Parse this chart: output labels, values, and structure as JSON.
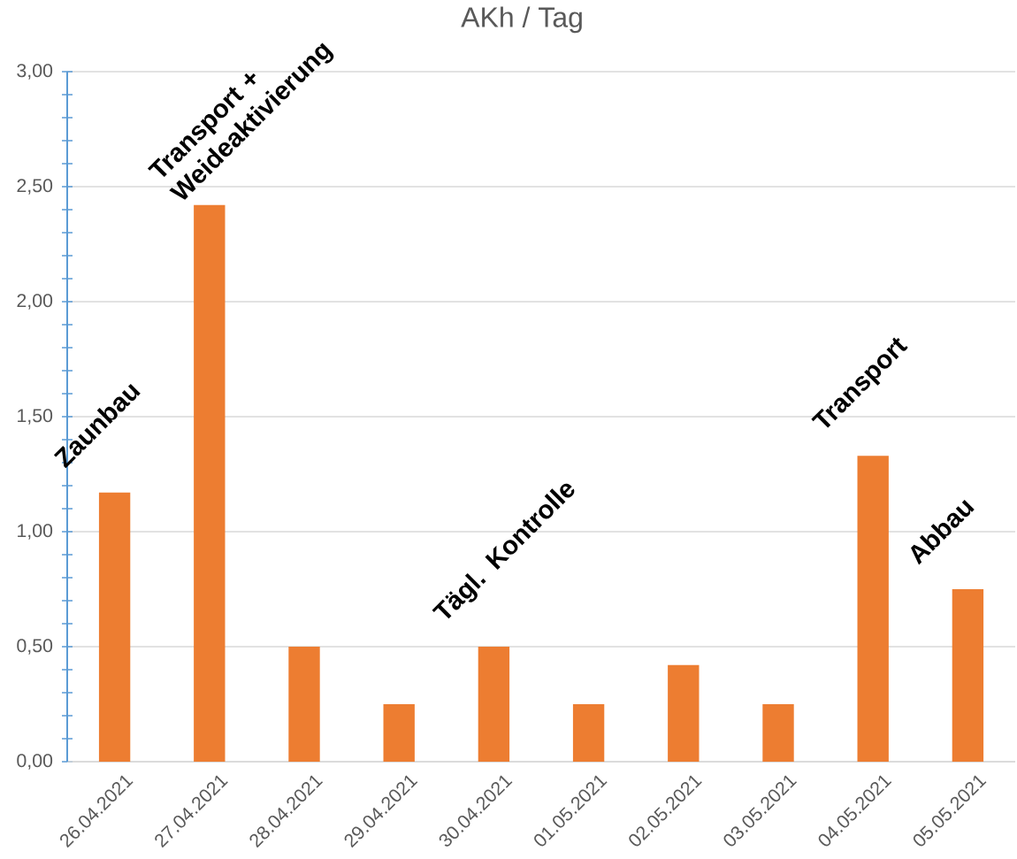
{
  "chart_data": {
    "type": "bar",
    "title": "AKh / Tag",
    "categories": [
      "26.04.2021",
      "27.04.2021",
      "28.04.2021",
      "29.04.2021",
      "30.04.2021",
      "01.05.2021",
      "02.05.2021",
      "03.05.2021",
      "04.05.2021",
      "05.05.2021"
    ],
    "values": [
      1.17,
      2.42,
      0.5,
      0.25,
      0.5,
      0.25,
      0.42,
      0.25,
      1.33,
      0.75
    ],
    "color": "#ed7d31",
    "ylim": [
      0,
      3
    ],
    "yticks": [
      {
        "value": 0,
        "label": "0,00"
      },
      {
        "value": 0.1,
        "label": null
      },
      {
        "value": 0.2,
        "label": null
      },
      {
        "value": 0.3,
        "label": null
      },
      {
        "value": 0.4,
        "label": null
      },
      {
        "value": 0.5,
        "label": "0,50"
      },
      {
        "value": 0.6,
        "label": null
      },
      {
        "value": 0.7,
        "label": null
      },
      {
        "value": 0.8,
        "label": null
      },
      {
        "value": 0.9,
        "label": null
      },
      {
        "value": 1,
        "label": "1,00"
      },
      {
        "value": 1.1,
        "label": null
      },
      {
        "value": 1.2,
        "label": null
      },
      {
        "value": 1.3,
        "label": null
      },
      {
        "value": 1.4,
        "label": null
      },
      {
        "value": 1.5,
        "label": "1,50"
      },
      {
        "value": 1.6,
        "label": null
      },
      {
        "value": 1.7,
        "label": null
      },
      {
        "value": 1.8,
        "label": null
      },
      {
        "value": 1.9,
        "label": null
      },
      {
        "value": 2,
        "label": "2,00"
      },
      {
        "value": 2.1,
        "label": null
      },
      {
        "value": 2.2,
        "label": null
      },
      {
        "value": 2.3,
        "label": null
      },
      {
        "value": 2.4,
        "label": null
      },
      {
        "value": 2.5,
        "label": "2,50"
      },
      {
        "value": 2.6,
        "label": null
      },
      {
        "value": 2.7,
        "label": null
      },
      {
        "value": 2.8,
        "label": null
      },
      {
        "value": 2.9,
        "label": null
      },
      {
        "value": 3,
        "label": "3,00"
      }
    ],
    "grid": "y",
    "annotations": [
      {
        "text": "Zaunbau",
        "x": "26.04.2021",
        "y": 1.17
      },
      {
        "text": "Transport + Weideaktivierung",
        "x": "27.04.2021",
        "y": 2.42
      },
      {
        "text": "Tägl. Kontrolle",
        "x": "30.04.2021",
        "y": 0.5
      },
      {
        "text": "Transport",
        "x": "04.05.2021",
        "y": 1.33
      },
      {
        "text": "Abbau",
        "x": "05.05.2021",
        "y": 0.75
      }
    ]
  }
}
